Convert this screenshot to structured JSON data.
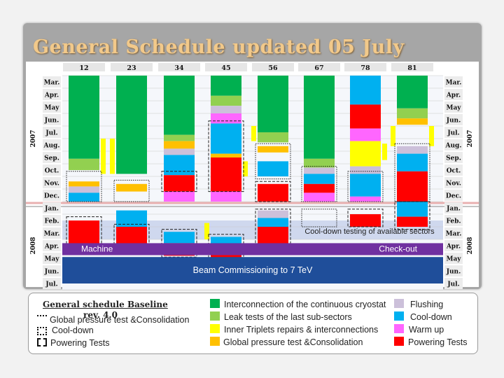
{
  "slide": {
    "title": "General Schedule updated 05 July"
  },
  "chart_data": {
    "type": "gantt",
    "sectors": [
      "12",
      "23",
      "34",
      "45",
      "56",
      "67",
      "78",
      "81"
    ],
    "months": [
      "Mar.",
      "Apr.",
      "May",
      "Jun.",
      "Jul.",
      "Aug.",
      "Sep.",
      "Oct.",
      "Nov.",
      "Dec.",
      "Jan.",
      "Feb.",
      "Mar.",
      "Apr.",
      "May",
      "Jun.",
      "Jul."
    ],
    "years": [
      {
        "label": "2007",
        "start": 0,
        "end": 10
      },
      {
        "label": "2008",
        "start": 10,
        "end": 17
      }
    ],
    "colors": {
      "interconnection": "#00b050",
      "leak": "#92d050",
      "inner_triplets": "#ffff00",
      "pressure": "#ffc000",
      "flushing": "#ccc0da",
      "cooldown": "#00b0f0",
      "warmup": "#ff66ff",
      "powering": "#ff0000",
      "machine": "#7030a0",
      "beam": "#1f4e9a"
    },
    "bars": [
      {
        "sector": 0,
        "task": "interconnection",
        "start": 0,
        "end": 6.6
      },
      {
        "sector": 0,
        "task": "leak",
        "start": 6.6,
        "end": 7.5
      },
      {
        "sector": 0,
        "task": "pressure",
        "start": 8.4,
        "end": 8.8
      },
      {
        "sector": 0,
        "task": "flushing",
        "start": 8.8,
        "end": 9.3
      },
      {
        "sector": 0,
        "task": "cooldown",
        "start": 9.3,
        "end": 10.0
      },
      {
        "sector": 0,
        "task": "powering",
        "start": 11.5,
        "end": 14.0
      },
      {
        "sector": 0,
        "task": "inner_triplets",
        "start": 5.0,
        "end": 7.8,
        "side": "right"
      },
      {
        "sector": 1,
        "task": "interconnection",
        "start": 0,
        "end": 7.8
      },
      {
        "sector": 1,
        "task": "pressure",
        "start": 8.6,
        "end": 9.2
      },
      {
        "sector": 1,
        "task": "cooldown",
        "start": 10.7,
        "end": 12.0
      },
      {
        "sector": 1,
        "task": "powering",
        "start": 12.0,
        "end": 14.0
      },
      {
        "sector": 1,
        "task": "inner_triplets",
        "start": 5.0,
        "end": 7.8,
        "side": "left"
      },
      {
        "sector": 2,
        "task": "interconnection",
        "start": 0,
        "end": 4.7
      },
      {
        "sector": 2,
        "task": "leak",
        "start": 4.7,
        "end": 5.2
      },
      {
        "sector": 2,
        "task": "pressure",
        "start": 5.2,
        "end": 5.8
      },
      {
        "sector": 2,
        "task": "flushing",
        "start": 5.8,
        "end": 6.3
      },
      {
        "sector": 2,
        "task": "cooldown",
        "start": 6.3,
        "end": 7.9
      },
      {
        "sector": 2,
        "task": "powering",
        "start": 7.9,
        "end": 9.2
      },
      {
        "sector": 2,
        "task": "warmup",
        "start": 9.2,
        "end": 10.0
      },
      {
        "sector": 2,
        "task": "cooldown",
        "start": 12.4,
        "end": 13.3
      },
      {
        "sector": 2,
        "task": "powering",
        "start": 13.3,
        "end": 14.3
      },
      {
        "sector": 3,
        "task": "interconnection",
        "start": 0,
        "end": 1.6
      },
      {
        "sector": 3,
        "task": "leak",
        "start": 1.6,
        "end": 2.4
      },
      {
        "sector": 3,
        "task": "flushing",
        "start": 2.4,
        "end": 3.0
      },
      {
        "sector": 3,
        "task": "warmup",
        "start": 3.0,
        "end": 3.8
      },
      {
        "sector": 3,
        "task": "cooldown",
        "start": 3.8,
        "end": 6.2
      },
      {
        "sector": 3,
        "task": "pressure",
        "start": 6.2,
        "end": 6.5
      },
      {
        "sector": 3,
        "task": "powering",
        "start": 6.5,
        "end": 9.2
      },
      {
        "sector": 3,
        "task": "warmup",
        "start": 9.2,
        "end": 10.0
      },
      {
        "sector": 3,
        "task": "cooldown",
        "start": 12.8,
        "end": 13.7
      },
      {
        "sector": 3,
        "task": "powering",
        "start": 13.7,
        "end": 14.6
      },
      {
        "sector": 3,
        "task": "inner_triplets",
        "start": 11.7,
        "end": 13.0,
        "side": "left"
      },
      {
        "sector": 3,
        "task": "inner_triplets",
        "start": 6.8,
        "end": 8.0,
        "side": "right"
      },
      {
        "sector": 4,
        "task": "interconnection",
        "start": 0,
        "end": 4.5
      },
      {
        "sector": 4,
        "task": "leak",
        "start": 4.5,
        "end": 5.3
      },
      {
        "sector": 4,
        "task": "pressure",
        "start": 5.6,
        "end": 6.1
      },
      {
        "sector": 4,
        "task": "cooldown",
        "start": 6.8,
        "end": 8.0
      },
      {
        "sector": 4,
        "task": "powering",
        "start": 8.6,
        "end": 10.0
      },
      {
        "sector": 4,
        "task": "flushing",
        "start": 10.7,
        "end": 11.3
      },
      {
        "sector": 4,
        "task": "cooldown",
        "start": 11.3,
        "end": 12.0
      },
      {
        "sector": 4,
        "task": "powering",
        "start": 12.0,
        "end": 14.0
      },
      {
        "sector": 4,
        "task": "inner_triplets",
        "start": 4.0,
        "end": 5.2,
        "side": "left"
      },
      {
        "sector": 5,
        "task": "interconnection",
        "start": 0,
        "end": 6.6
      },
      {
        "sector": 5,
        "task": "leak",
        "start": 6.6,
        "end": 7.3
      },
      {
        "sector": 5,
        "task": "flushing",
        "start": 7.3,
        "end": 7.8
      },
      {
        "sector": 5,
        "task": "cooldown",
        "start": 7.8,
        "end": 8.6
      },
      {
        "sector": 5,
        "task": "powering",
        "start": 8.6,
        "end": 9.3
      },
      {
        "sector": 5,
        "task": "warmup",
        "start": 9.3,
        "end": 10.0
      },
      {
        "sector": 6,
        "task": "cooldown",
        "start": 0,
        "end": 2.3
      },
      {
        "sector": 6,
        "task": "powering",
        "start": 2.3,
        "end": 4.2
      },
      {
        "sector": 6,
        "task": "warmup",
        "start": 4.2,
        "end": 5.2
      },
      {
        "sector": 6,
        "task": "inner_triplets",
        "start": 5.2,
        "end": 7.2
      },
      {
        "sector": 6,
        "task": "flushing",
        "start": 7.2,
        "end": 7.8
      },
      {
        "sector": 6,
        "task": "cooldown",
        "start": 7.8,
        "end": 9.6
      },
      {
        "sector": 6,
        "task": "warmup",
        "start": 9.6,
        "end": 10.0
      },
      {
        "sector": 6,
        "task": "powering",
        "start": 11.0,
        "end": 12.0
      },
      {
        "sector": 6,
        "task": "inner_triplets",
        "start": 5.4,
        "end": 6.7,
        "side": "right"
      },
      {
        "sector": 7,
        "task": "interconnection",
        "start": 0,
        "end": 2.6
      },
      {
        "sector": 7,
        "task": "leak",
        "start": 2.6,
        "end": 3.4
      },
      {
        "sector": 7,
        "task": "pressure",
        "start": 3.4,
        "end": 3.9
      },
      {
        "sector": 7,
        "task": "flushing",
        "start": 5.6,
        "end": 6.2
      },
      {
        "sector": 7,
        "task": "cooldown",
        "start": 6.2,
        "end": 7.6
      },
      {
        "sector": 7,
        "task": "powering",
        "start": 7.6,
        "end": 10.0
      },
      {
        "sector": 7,
        "task": "cooldown",
        "start": 10.0,
        "end": 11.2
      },
      {
        "sector": 7,
        "task": "powering",
        "start": 11.2,
        "end": 12.0
      },
      {
        "sector": 7,
        "task": "inner_triplets",
        "start": 4.0,
        "end": 5.6,
        "side": "left"
      },
      {
        "sector": 7,
        "task": "inner_triplets",
        "start": 4.0,
        "end": 5.6,
        "side": "right"
      }
    ],
    "phases": {
      "machine_label": "Machine",
      "checkout_label": "Check-out",
      "beam_label": "Beam Commissioning to 7 TeV",
      "cooldown_test_label": "Cool-down testing of available sectors"
    }
  },
  "legend": {
    "heading": "General schedule Baseline",
    "revision": "rev. 4.0",
    "left_items": [
      {
        "icon": "dotted",
        "label": "Global pressure test &Consolidation"
      },
      {
        "icon": "dotted-box",
        "label": "Cool-down"
      },
      {
        "icon": "dashed-box",
        "label": "Powering Tests"
      }
    ],
    "mid_items": [
      {
        "color": "#00b050",
        "label": "Interconnection of the continuous cryostat"
      },
      {
        "color": "#92d050",
        "label": "Leak tests of the last sub-sectors"
      },
      {
        "color": "#ffff00",
        "label": "Inner Triplets repairs & interconnections"
      },
      {
        "color": "#ffc000",
        "label": "Global pressure test &Consolidation"
      }
    ],
    "right_items": [
      {
        "color": "#ccc0da",
        "label": "Flushing"
      },
      {
        "color": "#00b0f0",
        "label": "Cool-down"
      },
      {
        "color": "#ff66ff",
        "label": "Warm up"
      },
      {
        "color": "#ff0000",
        "label": "Powering Tests"
      }
    ]
  }
}
